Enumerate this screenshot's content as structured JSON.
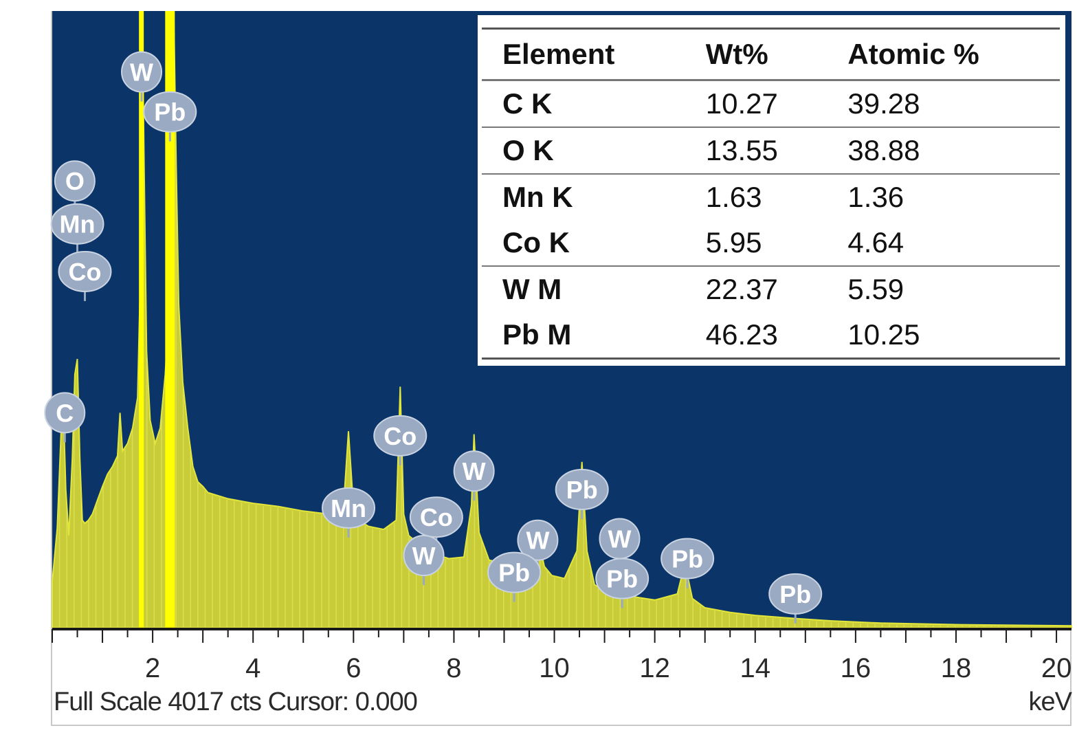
{
  "colors": {
    "background": "#0b3468",
    "spectrum_fill": "#c8cc38",
    "spectrum_line": "#e2e63a",
    "marker_line": "#ffff00",
    "peak_label_bg": "#9aaac2",
    "axis": "#1a1a1a"
  },
  "chart_data": {
    "type": "area",
    "title": "",
    "xlabel": "keV",
    "ylabel": "",
    "xlim": [
      0,
      20.3
    ],
    "ylim": [
      0,
      4017
    ],
    "x_ticks": [
      2,
      4,
      6,
      8,
      10,
      12,
      14,
      16,
      18,
      20
    ],
    "footer": "Full Scale 4017 cts Cursor: 0.000",
    "unit": "keV",
    "series": [
      {
        "x": [
          0.0,
          0.1,
          0.18,
          0.22,
          0.27,
          0.33,
          0.4,
          0.45,
          0.5,
          0.55,
          0.6,
          0.65,
          0.72,
          0.8,
          0.9,
          1.0,
          1.1,
          1.2,
          1.3,
          1.35,
          1.4,
          1.5,
          1.6,
          1.7,
          1.75,
          1.78,
          1.8,
          1.83,
          1.88,
          1.95,
          2.05,
          2.15,
          2.25,
          2.33,
          2.38,
          2.42,
          2.47,
          2.52,
          2.6,
          2.7,
          2.8,
          2.9,
          3.0,
          3.1,
          3.3,
          3.5,
          4.0,
          4.5,
          5.0,
          5.5,
          5.8,
          5.9,
          6.0,
          6.1,
          6.3,
          6.6,
          6.85,
          6.93,
          7.0,
          7.1,
          7.25,
          7.4,
          7.5,
          7.7,
          7.9,
          8.2,
          8.35,
          8.4,
          8.5,
          8.7,
          9.0,
          9.2,
          9.45,
          9.6,
          9.7,
          9.8,
          9.95,
          10.2,
          10.45,
          10.55,
          10.65,
          10.8,
          11.0,
          11.3,
          11.6,
          12.0,
          12.45,
          12.6,
          12.75,
          13.0,
          13.5,
          14.0,
          14.8,
          15.5,
          16.5,
          18.0,
          20.3
        ],
        "y": [
          300,
          650,
          1300,
          1450,
          900,
          600,
          1100,
          1650,
          1750,
          1100,
          700,
          680,
          700,
          740,
          830,
          920,
          1000,
          1050,
          1120,
          1400,
          1150,
          1200,
          1300,
          1500,
          2200,
          3000,
          3800,
          3000,
          1800,
          1350,
          1200,
          1300,
          1650,
          2100,
          3200,
          4017,
          3000,
          2100,
          1600,
          1300,
          1050,
          950,
          920,
          880,
          860,
          840,
          810,
          790,
          760,
          740,
          780,
          1280,
          780,
          700,
          660,
          640,
          700,
          1570,
          740,
          600,
          560,
          530,
          520,
          470,
          450,
          460,
          800,
          1260,
          620,
          440,
          420,
          410,
          430,
          480,
          560,
          400,
          340,
          320,
          500,
          1080,
          500,
          280,
          240,
          220,
          200,
          180,
          220,
          420,
          190,
          130,
          100,
          80,
          60,
          45,
          30,
          20,
          12
        ]
      }
    ],
    "marker_lines_keV": [
      1.775,
      2.345
    ],
    "peak_labels": [
      {
        "element": "W",
        "keV": 1.78,
        "counts": 3620
      },
      {
        "element": "Pb",
        "keV": 2.345,
        "counts": 3360
      },
      {
        "element": "O",
        "keV": 0.45,
        "counts": 2910
      },
      {
        "element": "Mn",
        "keV": 0.5,
        "counts": 2630
      },
      {
        "element": "Co",
        "keV": 0.65,
        "counts": 2320
      },
      {
        "element": "C",
        "keV": 0.25,
        "counts": 1400
      },
      {
        "element": "Co",
        "keV": 6.93,
        "counts": 1250
      },
      {
        "element": "Mn",
        "keV": 5.9,
        "counts": 780
      },
      {
        "element": "Co",
        "keV": 7.65,
        "counts": 720
      },
      {
        "element": "W",
        "keV": 8.4,
        "counts": 1020
      },
      {
        "element": "W",
        "keV": 7.4,
        "counts": 470
      },
      {
        "element": "Pb",
        "keV": 10.55,
        "counts": 900
      },
      {
        "element": "W",
        "keV": 9.67,
        "counts": 570
      },
      {
        "element": "Pb",
        "keV": 9.2,
        "counts": 360
      },
      {
        "element": "W",
        "keV": 11.3,
        "counts": 580
      },
      {
        "element": "Pb",
        "keV": 11.35,
        "counts": 320
      },
      {
        "element": "Pb",
        "keV": 12.65,
        "counts": 450
      },
      {
        "element": "Pb",
        "keV": 14.8,
        "counts": 220
      }
    ]
  },
  "table": {
    "headers": [
      "Element",
      "Wt%",
      "Atomic %"
    ],
    "rows": [
      {
        "element": "C K",
        "wt": "10.27",
        "atomic": "39.28"
      },
      {
        "element": "O K",
        "wt": "13.55",
        "atomic": "38.88"
      },
      {
        "element": "Mn K",
        "wt": "1.63",
        "atomic": "1.36"
      },
      {
        "element": "Co K",
        "wt": "5.95",
        "atomic": "4.64"
      },
      {
        "element": "W M",
        "wt": "22.37",
        "atomic": "5.59"
      },
      {
        "element": "Pb M",
        "wt": "46.23",
        "atomic": "10.25"
      }
    ]
  }
}
